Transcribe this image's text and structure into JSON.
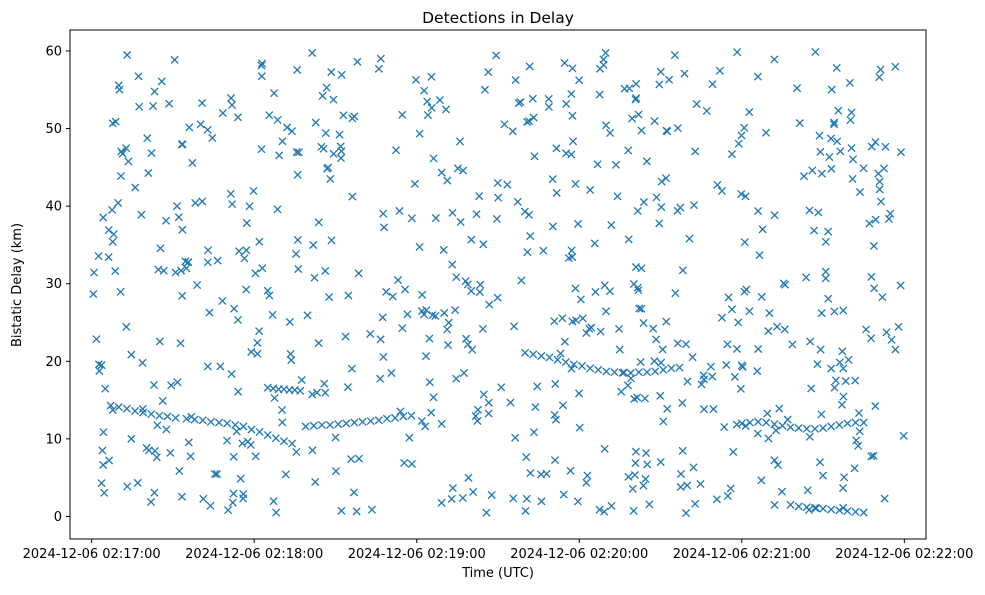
{
  "chart_data": {
    "type": "scatter",
    "title": "Detections in Delay",
    "xlabel": "Time (UTC)",
    "ylabel": "Bistatic Delay (km)",
    "x_axis": {
      "type": "time",
      "range": [
        "2024-12-06 02:16:52",
        "2024-12-06 02:22:08"
      ],
      "tick_labels": [
        "2024-12-06 02:17:00",
        "2024-12-06 02:18:00",
        "2024-12-06 02:19:00",
        "2024-12-06 02:20:00",
        "2024-12-06 02:21:00",
        "2024-12-06 02:22:00"
      ]
    },
    "y_axis": {
      "range": [
        -2.9,
        62.7
      ],
      "ticks": [
        0,
        10,
        20,
        30,
        40,
        50,
        60
      ]
    },
    "grid": false,
    "marker": "x",
    "series": [
      {
        "color": "#1f77b4",
        "note_noise_points": "approximately 700 scattered detections uniformly spread over 0-60 km across the full time range (positions approximated)",
        "track_points": [
          [
            "2024-12-06 02:17:07",
            14.3
          ],
          [
            "2024-12-06 02:17:10",
            14.1
          ],
          [
            "2024-12-06 02:17:13",
            13.9
          ],
          [
            "2024-12-06 02:17:16",
            13.6
          ],
          [
            "2024-12-06 02:17:19",
            13.4
          ],
          [
            "2024-12-06 02:17:22",
            13.2
          ],
          [
            "2024-12-06 02:17:25",
            13.0
          ],
          [
            "2024-12-06 02:17:28",
            12.9
          ],
          [
            "2024-12-06 02:17:31",
            12.7
          ],
          [
            "2024-12-06 02:17:35",
            12.6
          ],
          [
            "2024-12-06 02:17:38",
            12.5
          ],
          [
            "2024-12-06 02:17:41",
            12.4
          ],
          [
            "2024-12-06 02:17:44",
            12.2
          ],
          [
            "2024-12-06 02:17:47",
            12.1
          ],
          [
            "2024-12-06 02:17:50",
            12.0
          ],
          [
            "2024-12-06 02:17:53",
            11.8
          ],
          [
            "2024-12-06 02:17:56",
            11.6
          ],
          [
            "2024-12-06 02:17:59",
            11.2
          ],
          [
            "2024-12-06 02:18:02",
            10.9
          ],
          [
            "2024-12-06 02:18:05",
            10.5
          ],
          [
            "2024-12-06 02:18:08",
            10.1
          ],
          [
            "2024-12-06 02:18:11",
            9.7
          ],
          [
            "2024-12-06 02:18:14",
            9.4
          ],
          [
            "2024-12-06 02:18:05",
            16.6
          ],
          [
            "2024-12-06 02:18:07",
            16.5
          ],
          [
            "2024-12-06 02:18:09",
            16.4
          ],
          [
            "2024-12-06 02:18:11",
            16.4
          ],
          [
            "2024-12-06 02:18:13",
            16.3
          ],
          [
            "2024-12-06 02:18:15",
            16.3
          ],
          [
            "2024-12-06 02:18:17",
            16.2
          ],
          [
            "2024-12-06 02:18:19",
            11.6
          ],
          [
            "2024-12-06 02:18:22",
            11.7
          ],
          [
            "2024-12-06 02:18:25",
            11.8
          ],
          [
            "2024-12-06 02:18:28",
            11.8
          ],
          [
            "2024-12-06 02:18:31",
            11.9
          ],
          [
            "2024-12-06 02:18:34",
            12.0
          ],
          [
            "2024-12-06 02:18:37",
            12.1
          ],
          [
            "2024-12-06 02:18:40",
            12.2
          ],
          [
            "2024-12-06 02:18:43",
            12.3
          ],
          [
            "2024-12-06 02:18:46",
            12.4
          ],
          [
            "2024-12-06 02:18:49",
            12.6
          ],
          [
            "2024-12-06 02:18:52",
            12.7
          ],
          [
            "2024-12-06 02:18:55",
            12.9
          ],
          [
            "2024-12-06 02:18:58",
            13.0
          ],
          [
            "2024-12-06 02:19:40",
            21.1
          ],
          [
            "2024-12-06 02:19:43",
            20.9
          ],
          [
            "2024-12-06 02:19:46",
            20.7
          ],
          [
            "2024-12-06 02:19:49",
            20.5
          ],
          [
            "2024-12-06 02:19:52",
            20.2
          ],
          [
            "2024-12-06 02:19:55",
            19.9
          ],
          [
            "2024-12-06 02:19:58",
            19.6
          ],
          [
            "2024-12-06 02:20:01",
            19.4
          ],
          [
            "2024-12-06 02:20:04",
            19.1
          ],
          [
            "2024-12-06 02:20:07",
            18.9
          ],
          [
            "2024-12-06 02:20:10",
            18.7
          ],
          [
            "2024-12-06 02:20:13",
            18.6
          ],
          [
            "2024-12-06 02:20:16",
            18.5
          ],
          [
            "2024-12-06 02:20:19",
            18.5
          ],
          [
            "2024-12-06 02:20:22",
            18.6
          ],
          [
            "2024-12-06 02:20:25",
            18.6
          ],
          [
            "2024-12-06 02:20:28",
            18.7
          ],
          [
            "2024-12-06 02:20:31",
            18.9
          ],
          [
            "2024-12-06 02:20:34",
            19.1
          ],
          [
            "2024-12-06 02:20:37",
            19.2
          ],
          [
            "2024-12-06 02:21:00",
            12.0
          ],
          [
            "2024-12-06 02:21:03",
            12.1
          ],
          [
            "2024-12-06 02:21:06",
            12.2
          ],
          [
            "2024-12-06 02:21:09",
            12.1
          ],
          [
            "2024-12-06 02:21:12",
            11.9
          ],
          [
            "2024-12-06 02:21:15",
            11.7
          ],
          [
            "2024-12-06 02:21:18",
            11.5
          ],
          [
            "2024-12-06 02:21:21",
            11.4
          ],
          [
            "2024-12-06 02:21:24",
            11.3
          ],
          [
            "2024-12-06 02:21:27",
            11.3
          ],
          [
            "2024-12-06 02:21:30",
            11.4
          ],
          [
            "2024-12-06 02:21:33",
            11.6
          ],
          [
            "2024-12-06 02:21:36",
            11.8
          ],
          [
            "2024-12-06 02:21:39",
            12.0
          ],
          [
            "2024-12-06 02:21:42",
            12.1
          ],
          [
            "2024-12-06 02:21:45",
            12.1
          ],
          [
            "2024-12-06 02:21:18",
            1.5
          ],
          [
            "2024-12-06 02:21:21",
            1.3
          ],
          [
            "2024-12-06 02:21:24",
            1.2
          ],
          [
            "2024-12-06 02:21:27",
            1.1
          ],
          [
            "2024-12-06 02:21:30",
            1.0
          ],
          [
            "2024-12-06 02:21:33",
            0.9
          ],
          [
            "2024-12-06 02:21:36",
            0.8
          ],
          [
            "2024-12-06 02:21:39",
            0.7
          ],
          [
            "2024-12-06 02:21:42",
            0.6
          ],
          [
            "2024-12-06 02:21:45",
            0.5
          ]
        ]
      }
    ]
  }
}
